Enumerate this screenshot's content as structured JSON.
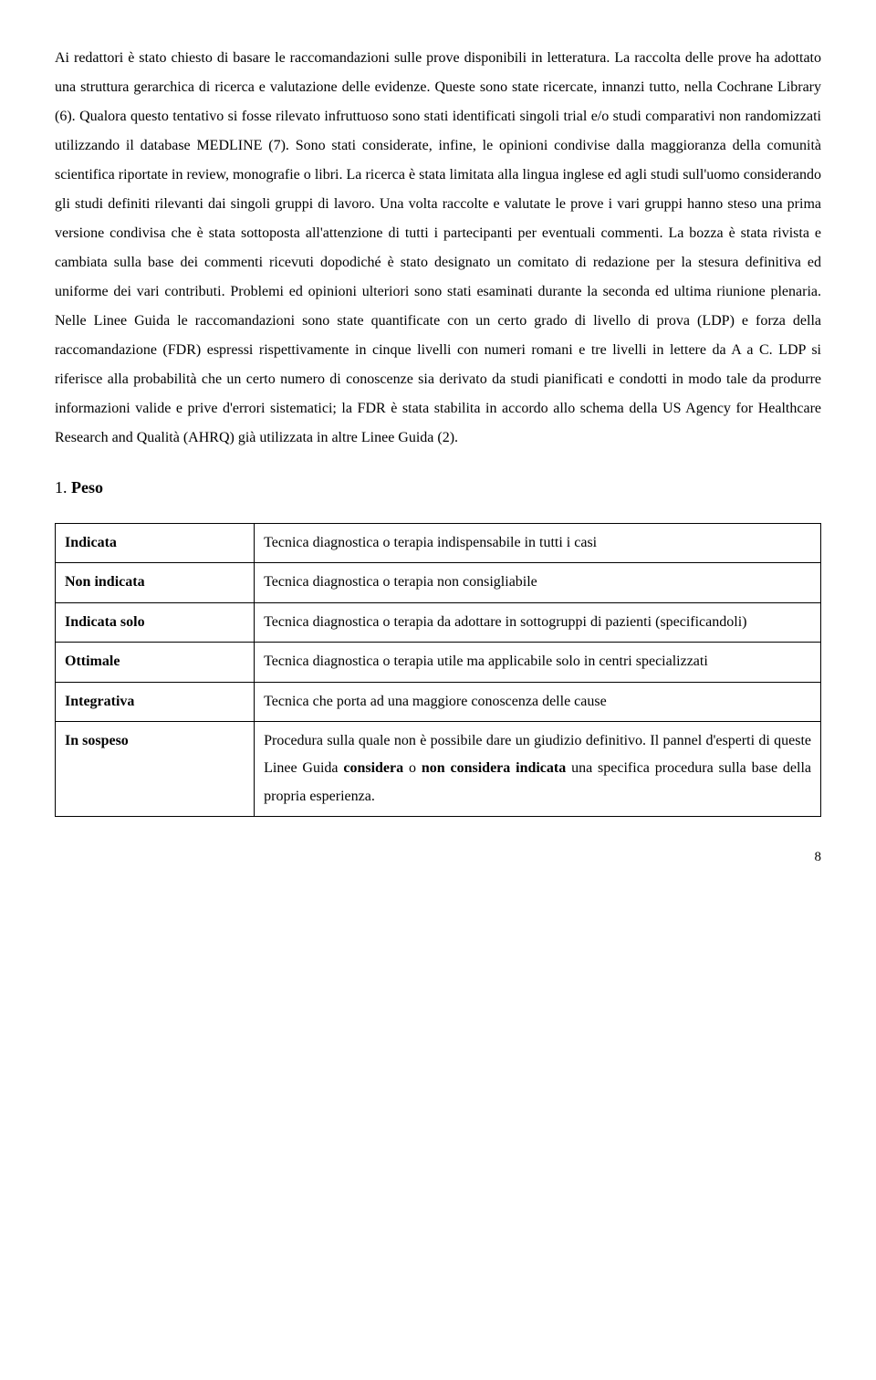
{
  "paragraph": "Ai redattori è stato chiesto di basare le raccomandazioni sulle prove disponibili in letteratura. La raccolta delle prove ha adottato una struttura gerarchica di ricerca e valutazione delle evidenze. Queste sono state ricercate, innanzi tutto, nella Cochrane Library (6). Qualora questo tentativo si fosse rilevato infruttuoso sono stati identificati singoli trial e/o studi comparativi non randomizzati utilizzando il database MEDLINE (7). Sono stati considerate, infine, le opinioni condivise dalla maggioranza della comunità scientifica riportate in review, monografie o libri. La ricerca è stata limitata alla lingua inglese ed agli studi sull'uomo considerando gli studi definiti rilevanti dai singoli gruppi di lavoro. Una volta raccolte e valutate le prove i vari gruppi hanno steso una prima versione condivisa che è stata sottoposta all'attenzione di tutti i partecipanti per eventuali commenti. La bozza è stata rivista e cambiata sulla base dei commenti ricevuti dopodiché è stato designato un comitato di redazione per la stesura definitiva ed uniforme dei vari contributi. Problemi ed opinioni ulteriori sono stati esaminati durante la seconda ed ultima riunione plenaria. Nelle Linee Guida le raccomandazioni sono state quantificate con un certo grado di livello di prova (LDP) e forza della raccomandazione (FDR) espressi rispettivamente in cinque livelli con numeri romani e tre livelli in lettere da A a C. LDP si riferisce alla probabilità che un certo numero di conoscenze sia derivato da studi pianificati e condotti in modo tale da produrre informazioni valide e prive d'errori sistematici; la FDR è stata stabilita in accordo allo schema della US Agency for Healthcare Research and Qualità (AHRQ) già utilizzata in altre Linee Guida (2).",
  "section": {
    "number": "1.",
    "title": "Peso"
  },
  "table": {
    "rows": [
      {
        "label": "Indicata",
        "desc": "Tecnica diagnostica o terapia indispensabile in tutti i casi"
      },
      {
        "label": "Non indicata",
        "desc": "Tecnica diagnostica o terapia non consigliabile"
      },
      {
        "label": "Indicata solo",
        "desc": "Tecnica diagnostica o terapia da adottare in sottogruppi di pazienti (specificandoli)"
      },
      {
        "label": "Ottimale",
        "desc": "Tecnica diagnostica o terapia utile ma applicabile solo in centri specializzati"
      },
      {
        "label": "Integrativa",
        "desc": "Tecnica che porta ad una maggiore conoscenza delle cause"
      },
      {
        "label": "In sospeso",
        "desc_pre": "Procedura sulla quale non è possibile dare un giudizio definitivo. Il pannel d'esperti di queste Linee Guida ",
        "desc_bold1": "considera",
        "desc_mid": " o ",
        "desc_bold2": "non considera indicata",
        "desc_post": " una specifica procedura sulla base della propria esperienza."
      }
    ]
  },
  "page_number": "8"
}
